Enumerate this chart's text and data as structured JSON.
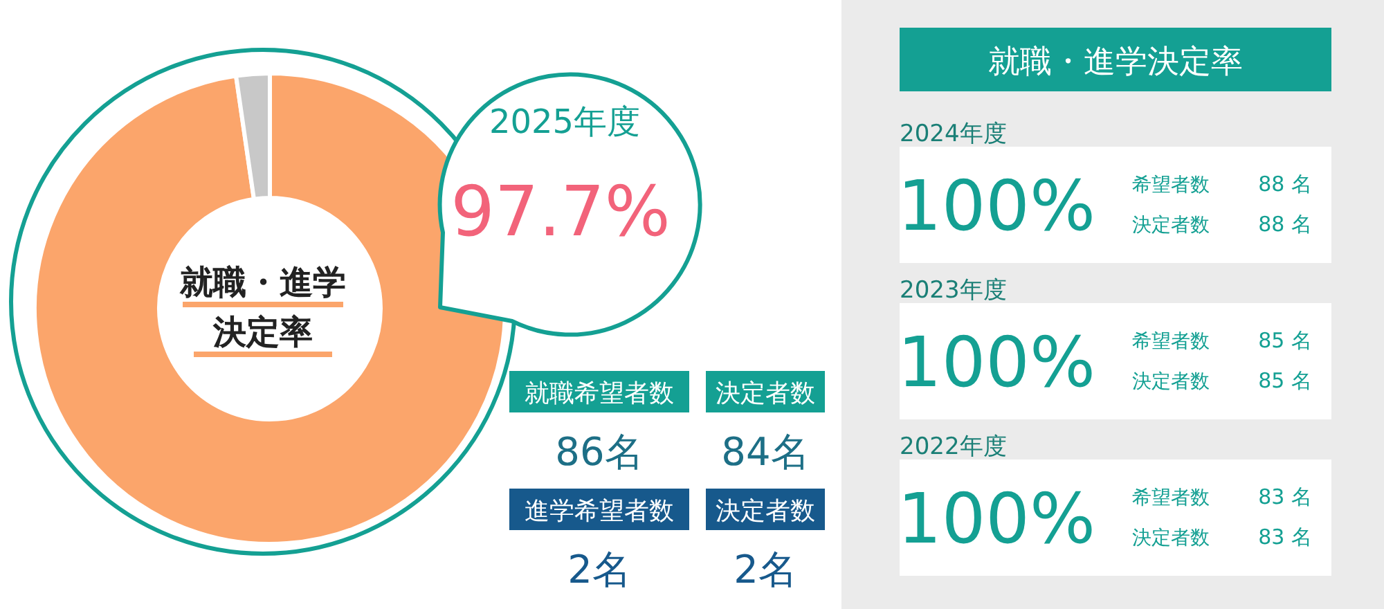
{
  "chart_data": [
    {
      "type": "donut",
      "title": "就職・進学決定率",
      "categories": [
        null,
        null
      ],
      "values": [
        97.7,
        2.3
      ],
      "colors": [
        "#fba56b",
        "#c8c8c8"
      ],
      "value_labels": [
        "97.7%",
        null
      ],
      "annotations": [
        "2025年度",
        "就職希望者数",
        "86名",
        "決定者数",
        "84名",
        "進学希望者数",
        "2名",
        "決定者数",
        "2名"
      ]
    },
    {
      "type": "other",
      "title": "就職・進学決定率",
      "annotations": [
        "2024年度",
        "100%",
        "希望者数",
        "88 名",
        "決定者数",
        "88 名",
        "2023年度",
        "100%",
        "希望者数",
        "85 名",
        "決定者数",
        "85 名",
        "2022年度",
        "100%",
        "希望者数",
        "83 名",
        "決定者数",
        "83 名"
      ]
    }
  ]
}
